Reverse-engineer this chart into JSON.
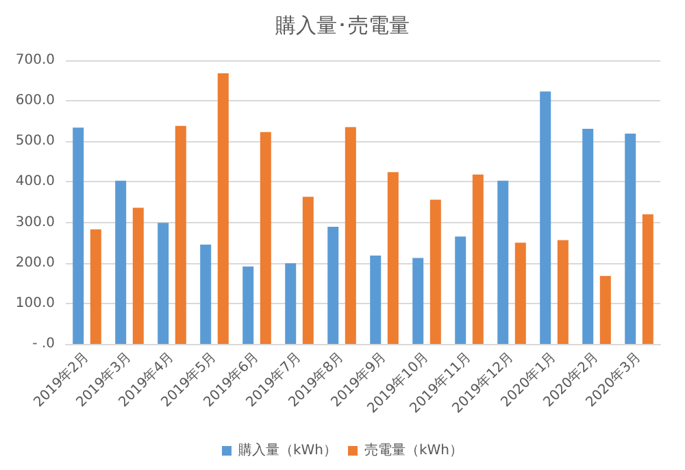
{
  "chart_data": {
    "type": "bar",
    "title": "購入量･売電量",
    "categories": [
      "2019年2月",
      "2019年3月",
      "2019年4月",
      "2019年5月",
      "2019年6月",
      "2019年7月",
      "2019年8月",
      "2019年9月",
      "2019年10月",
      "2019年11月",
      "2019年12月",
      "2020年1月",
      "2020年2月",
      "2020年3月"
    ],
    "series": [
      {
        "name": "購入量（kWh）",
        "color": "#5b9bd5",
        "values": [
          534,
          403,
          299,
          245,
          191,
          199,
          289,
          218,
          212,
          265,
          403,
          623,
          531,
          519
        ]
      },
      {
        "name": "売電量（kWh）",
        "color": "#ed7d31",
        "values": [
          283,
          336,
          538,
          668,
          523,
          363,
          535,
          424,
          356,
          418,
          250,
          256,
          168,
          320
        ]
      }
    ],
    "ylim": [
      0,
      700
    ],
    "yticks": [
      {
        "value": 0,
        "label": "- .0"
      },
      {
        "value": 100,
        "label": "100.0"
      },
      {
        "value": 200,
        "label": "200.0"
      },
      {
        "value": 300,
        "label": "300.0"
      },
      {
        "value": 400,
        "label": "400.0"
      },
      {
        "value": 500,
        "label": "500.0"
      },
      {
        "value": 600,
        "label": "600.0"
      },
      {
        "value": 700,
        "label": "700.0"
      }
    ],
    "grid": "y",
    "legend": "bottom"
  }
}
